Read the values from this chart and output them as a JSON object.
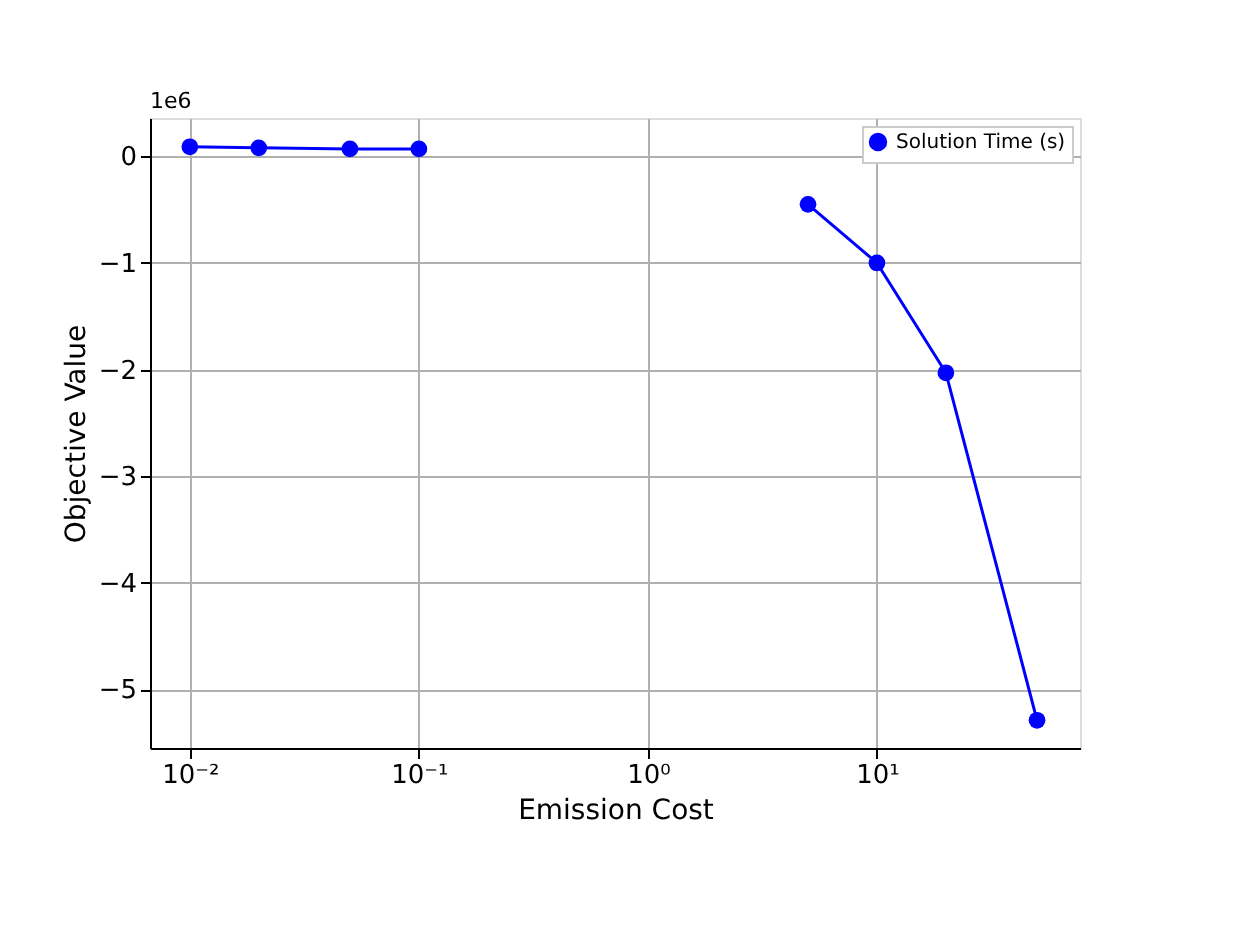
{
  "chart_data": {
    "type": "line",
    "xlabel": "Emission Cost",
    "ylabel": "Objective Value",
    "annotations": [
      "1e6"
    ],
    "x": [
      0.01,
      0.02,
      0.05,
      0.1,
      1,
      5,
      10,
      20,
      50
    ],
    "series": [
      {
        "name": "Solution Time (s)",
        "color": "#0000ff",
        "values": [
          0.09,
          0.08,
          0.07,
          0.07,
          null,
          -0.45,
          -1.0,
          -2.03,
          -5.29
        ]
      }
    ],
    "log": "x",
    "xlim": [
      0.0067,
      77
    ],
    "ylim": [
      -5.55,
      0.36
    ],
    "xticks": [
      {
        "value": 0.01,
        "label": "10⁻²"
      },
      {
        "value": 0.1,
        "label": "10⁻¹"
      },
      {
        "value": 1,
        "label": "10⁰"
      },
      {
        "value": 10,
        "label": "10¹"
      }
    ],
    "yticks": [
      -5,
      -4,
      -3,
      -2,
      -1,
      0
    ],
    "grid": true,
    "legend": "top right",
    "marker": "circle",
    "line_style": "solid"
  }
}
